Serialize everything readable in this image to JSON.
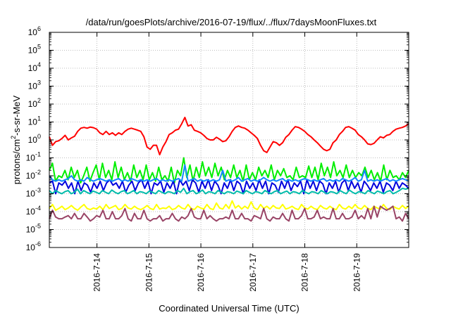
{
  "chart_data": {
    "type": "line",
    "title": "/data/run/goesPlots/archive/2016-07-19/flux/../flux/7daysMoonFluxes.txt",
    "xlabel": "Coordinated Universal Time (UTC)",
    "ylabel": "protons/cm2-s-sr-MeV",
    "ylabel_parts": {
      "before": "protons/cm",
      "sup": "2",
      "after": "-s-sr-MeV"
    },
    "yscale": "log",
    "ylim_exponent": [
      -6,
      6
    ],
    "y_ticks": [
      {
        "base": "10",
        "exp": "6"
      },
      {
        "base": "10",
        "exp": "5"
      },
      {
        "base": "10",
        "exp": "4"
      },
      {
        "base": "10",
        "exp": "3"
      },
      {
        "base": "10",
        "exp": "2"
      },
      {
        "base": "10",
        "exp": "1"
      },
      {
        "base": "10",
        "exp": "0"
      },
      {
        "base": "10",
        "exp": "-1"
      },
      {
        "base": "10",
        "exp": "-2"
      },
      {
        "base": "10",
        "exp": "-3"
      },
      {
        "base": "10",
        "exp": "-4"
      },
      {
        "base": "10",
        "exp": "-5"
      },
      {
        "base": "10",
        "exp": "-6"
      }
    ],
    "x_start": "2016-07-13 02:00",
    "x_end": "2016-07-20 00:00",
    "x_ticks": [
      "2016-7-14",
      "2016-7-15",
      "2016-7-16",
      "2016-7-17",
      "2016-7-18",
      "2016-7-19"
    ],
    "grid": true,
    "series": [
      {
        "color": "#ff0000",
        "values": [
          1.5,
          0.5,
          0.8,
          0.9,
          1.2,
          1.8,
          1.0,
          1.3,
          1.6,
          3.0,
          4.5,
          5.0,
          4.5,
          5.2,
          4.8,
          4.0,
          2.5,
          2.0,
          3.0,
          2.0,
          2.5,
          1.8,
          2.5,
          2.0,
          3.0,
          4.0,
          4.5,
          4.0,
          3.5,
          3.0,
          1.5,
          0.4,
          0.3,
          0.5,
          0.5,
          0.15,
          0.4,
          0.8,
          2.0,
          2.5,
          3.5,
          4.0,
          8.0,
          18.0,
          6.0,
          7.0,
          3.5,
          3.0,
          2.5,
          1.8,
          1.2,
          1.0,
          1.0,
          1.4,
          1.1,
          0.8,
          0.9,
          1.5,
          3.0,
          5.0,
          6.0,
          5.0,
          4.5,
          3.5,
          2.5,
          1.8,
          1.2,
          0.5,
          0.25,
          0.2,
          0.4,
          0.8,
          0.7,
          0.5,
          0.7,
          1.4,
          2.0,
          3.5,
          5.5,
          5.0,
          4.0,
          3.0,
          2.0,
          1.5,
          1.0,
          0.7,
          0.45,
          0.3,
          0.25,
          0.3,
          0.7,
          1.0,
          2.0,
          3.0,
          5.0,
          5.5,
          4.5,
          3.5,
          2.0,
          1.5,
          1.0,
          0.6,
          0.55,
          0.65,
          1.0,
          1.5,
          1.3,
          1.8,
          2.0,
          3.0,
          4.0,
          4.5,
          5.0,
          6.0,
          8.0
        ]
      },
      {
        "color": "#00ee00",
        "values": [
          0.02,
          0.05,
          0.005,
          0.01,
          0.008,
          0.02,
          0.006,
          0.03,
          0.008,
          0.02,
          0.004,
          0.01,
          0.03,
          0.005,
          0.015,
          0.04,
          0.006,
          0.05,
          0.008,
          0.02,
          0.006,
          0.06,
          0.008,
          0.03,
          0.006,
          0.015,
          0.005,
          0.04,
          0.008,
          0.02,
          0.006,
          0.04,
          0.006,
          0.015,
          0.005,
          0.03,
          0.006,
          0.01,
          0.005,
          0.03,
          0.004,
          0.02,
          0.01,
          0.1,
          0.008,
          0.04,
          0.005,
          0.03,
          0.008,
          0.06,
          0.01,
          0.03,
          0.008,
          0.05,
          0.01,
          0.03,
          0.006,
          0.02,
          0.008,
          0.04,
          0.008,
          0.02,
          0.005,
          0.04,
          0.006,
          0.015,
          0.006,
          0.03,
          0.01,
          0.02,
          0.008,
          0.04,
          0.006,
          0.02,
          0.01,
          0.025,
          0.008,
          0.01,
          0.006,
          0.03,
          0.008,
          0.01,
          0.008,
          0.035,
          0.008,
          0.03,
          0.006,
          0.05,
          0.01,
          0.03,
          0.008,
          0.06,
          0.01,
          0.02,
          0.008,
          0.04,
          0.008,
          0.02,
          0.008,
          0.015,
          0.01,
          0.03,
          0.008,
          0.02,
          0.006,
          0.015,
          0.005,
          0.04,
          0.006,
          0.02,
          0.008,
          0.01,
          0.006,
          0.015,
          0.008,
          0.02
        ]
      },
      {
        "color": "#0000dd",
        "values": [
          0.004,
          0.005,
          0.001,
          0.004,
          0.003,
          0.005,
          0.002,
          0.004,
          0.001,
          0.005,
          0.0015,
          0.004,
          0.003,
          0.0012,
          0.004,
          0.002,
          0.005,
          0.0015,
          0.004,
          0.006,
          0.003,
          0.004,
          0.002,
          0.005,
          0.0012,
          0.003,
          0.005,
          0.0015,
          0.004,
          0.006,
          0.002,
          0.005,
          0.001,
          0.004,
          0.003,
          0.005,
          0.0012,
          0.004,
          0.002,
          0.005,
          0.001,
          0.006,
          0.003,
          0.005,
          0.0015,
          0.006,
          0.004,
          0.0012,
          0.005,
          0.002,
          0.006,
          0.0015,
          0.005,
          0.003,
          0.001,
          0.004,
          0.002,
          0.006,
          0.0015,
          0.005,
          0.0035,
          0.001,
          0.005,
          0.002,
          0.004,
          0.0015,
          0.006,
          0.002,
          0.005,
          0.001,
          0.004,
          0.003,
          0.0012,
          0.005,
          0.002,
          0.006,
          0.0015,
          0.004,
          0.0025,
          0.005,
          0.001,
          0.006,
          0.002,
          0.005,
          0.0015,
          0.005,
          0.0035,
          0.001,
          0.004,
          0.002,
          0.005,
          0.0012,
          0.004,
          0.006,
          0.0015,
          0.005,
          0.002,
          0.004,
          0.0012,
          0.005,
          0.003,
          0.0015,
          0.004,
          0.002,
          0.005,
          0.0012,
          0.004,
          0.003,
          0.0015,
          0.005,
          0.002,
          0.004,
          0.003,
          0.002
        ]
      },
      {
        "color": "#1188ff",
        "values": [
          0.01,
          0.006,
          0.005,
          0.006,
          0.005,
          0.006,
          0.007,
          0.01,
          0.006,
          0.005,
          0.006,
          0.005,
          0.008,
          0.006,
          0.005,
          0.006,
          0.007,
          0.006,
          0.005,
          0.006,
          0.005,
          0.006,
          0.007,
          0.005,
          0.006,
          0.005,
          0.007,
          0.006,
          0.005,
          0.006,
          0.005,
          0.006,
          0.005,
          0.006,
          0.007,
          0.005,
          0.006,
          0.005,
          0.006,
          0.005,
          0.006,
          0.007,
          0.005,
          0.04,
          0.005,
          0.006,
          0.007,
          0.005,
          0.006,
          0.005,
          0.006,
          0.005,
          0.006,
          0.005,
          0.006,
          0.02,
          0.005,
          0.006,
          0.005,
          0.006,
          0.008,
          0.005,
          0.006,
          0.007,
          0.005,
          0.006,
          0.005,
          0.006,
          0.008,
          0.006,
          0.005,
          0.006,
          0.005,
          0.006,
          0.007,
          0.005,
          0.006,
          0.005,
          0.006,
          0.005,
          0.006,
          0.007,
          0.006,
          0.005,
          0.006,
          0.005,
          0.006,
          0.007,
          0.005,
          0.006,
          0.005,
          0.006,
          0.005,
          0.007,
          0.006,
          0.005,
          0.006,
          0.008,
          0.005,
          0.006,
          0.02,
          0.005,
          0.006,
          0.005,
          0.006,
          0.005,
          0.006,
          0.007,
          0.005,
          0.006,
          0.005,
          0.006,
          0.007,
          0.006,
          0.005
        ]
      },
      {
        "color": "#00bbaa",
        "values": [
          0.0015,
          0.001,
          0.0015,
          0.0012,
          0.001,
          0.0013,
          0.0015,
          0.001,
          0.0012,
          0.0018,
          0.001,
          0.0015,
          0.0012,
          0.001,
          0.0014,
          0.0012,
          0.001,
          0.0015,
          0.0012,
          0.001,
          0.0016,
          0.0012,
          0.001,
          0.0013,
          0.0015,
          0.001,
          0.0012,
          0.0015,
          0.001,
          0.0013,
          0.0012,
          0.001,
          0.0014,
          0.0012,
          0.001,
          0.0015,
          0.0012,
          0.001,
          0.0013,
          0.0012,
          0.001,
          0.0015,
          0.0012,
          0.002,
          0.001,
          0.0013,
          0.0015,
          0.001,
          0.0012,
          0.0016,
          0.001,
          0.0013,
          0.0012,
          0.001,
          0.0015,
          0.0012,
          0.001,
          0.0013,
          0.0012,
          0.001,
          0.0014,
          0.0012,
          0.001,
          0.0015,
          0.0012,
          0.001,
          0.0013,
          0.0012,
          0.001,
          0.0015,
          0.0012,
          0.001,
          0.0013,
          0.0015,
          0.001,
          0.0012,
          0.0014,
          0.001,
          0.0013,
          0.0012,
          0.001,
          0.0015,
          0.0012,
          0.001,
          0.0013,
          0.0012,
          0.001,
          0.0015,
          0.0012,
          0.001,
          0.0013,
          0.0012,
          0.001,
          0.0015,
          0.0012,
          0.001,
          0.0016,
          0.0012,
          0.001,
          0.0013,
          0.0012,
          0.001,
          0.0015,
          0.0012,
          0.001,
          0.0014,
          0.0012,
          0.001,
          0.0013,
          0.0015,
          0.001,
          0.0012,
          0.0015,
          0.002,
          0.0018,
          0.002
        ]
      },
      {
        "color": "#ffff00",
        "values": [
          0.00015,
          0.00025,
          0.00012,
          0.00015,
          0.0002,
          0.00013,
          0.00016,
          0.00022,
          0.00015,
          0.00012,
          0.00018,
          0.00025,
          0.00015,
          0.00013,
          0.00016,
          0.00014,
          0.0002,
          0.00013,
          0.00025,
          0.00015,
          0.00018,
          0.00022,
          0.00013,
          0.00015,
          0.00025,
          0.00016,
          0.00014,
          0.0002,
          0.00015,
          0.00013,
          0.00016,
          0.00022,
          0.00015,
          0.00013,
          0.00025,
          0.00014,
          0.00016,
          0.00015,
          0.0002,
          0.00013,
          0.00015,
          0.00022,
          0.00016,
          0.00014,
          0.00025,
          0.00015,
          0.00013,
          0.0002,
          0.00016,
          0.00014,
          0.00025,
          0.00015,
          0.00013,
          0.0003,
          0.00016,
          0.00014,
          0.00025,
          0.00015,
          0.0004,
          0.00016,
          0.00022,
          0.00014,
          0.0002,
          0.00015,
          0.00035,
          0.00016,
          0.00013,
          0.00025,
          0.00015,
          0.0002,
          0.00014,
          0.00022,
          0.00016,
          0.00015,
          0.00025,
          0.00014,
          0.00016,
          0.0002,
          0.00015,
          0.00013,
          0.00025,
          0.00016,
          0.00014,
          0.0002,
          0.00015,
          0.00013,
          0.00022,
          0.00016,
          0.00014,
          0.0002,
          0.00015,
          0.00013,
          0.00025,
          0.00016,
          0.00014,
          0.0002,
          0.00015,
          0.00025,
          0.00016,
          0.00014,
          0.00022,
          0.00015,
          0.00013,
          0.0002,
          0.00016,
          0.00014,
          0.00025,
          0.00015,
          0.00013,
          0.0002,
          0.00016,
          0.00014,
          0.00022,
          0.00015,
          0.0002
        ]
      },
      {
        "color": "#994466",
        "values": [
          4e-05,
          0.00012,
          5e-05,
          4e-05,
          4e-05,
          5e-05,
          6e-05,
          4e-05,
          8e-05,
          4e-05,
          4e-05,
          8e-05,
          5e-05,
          3e-05,
          4e-05,
          6e-05,
          5e-05,
          0.00012,
          4e-05,
          4e-05,
          0.0001,
          4e-05,
          4e-05,
          6e-05,
          0.00015,
          4e-05,
          3e-05,
          8e-05,
          4e-05,
          4e-05,
          0.00012,
          4e-05,
          3e-05,
          4e-05,
          4e-05,
          6e-05,
          3e-05,
          4e-05,
          4e-05,
          8e-05,
          4e-05,
          3e-05,
          5e-05,
          4e-05,
          6e-05,
          0.00015,
          5e-05,
          4e-05,
          4e-05,
          0.00012,
          4e-05,
          6e-05,
          4e-05,
          3e-05,
          4e-05,
          4e-05,
          5e-05,
          4e-05,
          0.00012,
          4e-05,
          4e-05,
          8e-05,
          4e-05,
          4e-05,
          3e-05,
          6e-05,
          5e-05,
          4e-05,
          0.00015,
          4e-05,
          3e-05,
          5e-05,
          4e-05,
          4e-05,
          8e-05,
          4e-05,
          3e-05,
          0.00012,
          4e-05,
          4e-05,
          6e-05,
          0.00015,
          4e-05,
          4e-05,
          5e-05,
          0.00012,
          4e-05,
          5e-05,
          4e-05,
          4e-05,
          0.00015,
          4e-05,
          4e-05,
          8e-05,
          4e-05,
          4e-05,
          5e-05,
          0.00012,
          4e-05,
          6e-05,
          4e-05,
          0.00015,
          4e-05,
          0.0002,
          5e-05,
          0.0002,
          0.00015,
          0.00012,
          0.00015,
          0.0002,
          4e-05,
          5e-05,
          3e-05,
          8e-05,
          4e-05
        ]
      }
    ]
  }
}
